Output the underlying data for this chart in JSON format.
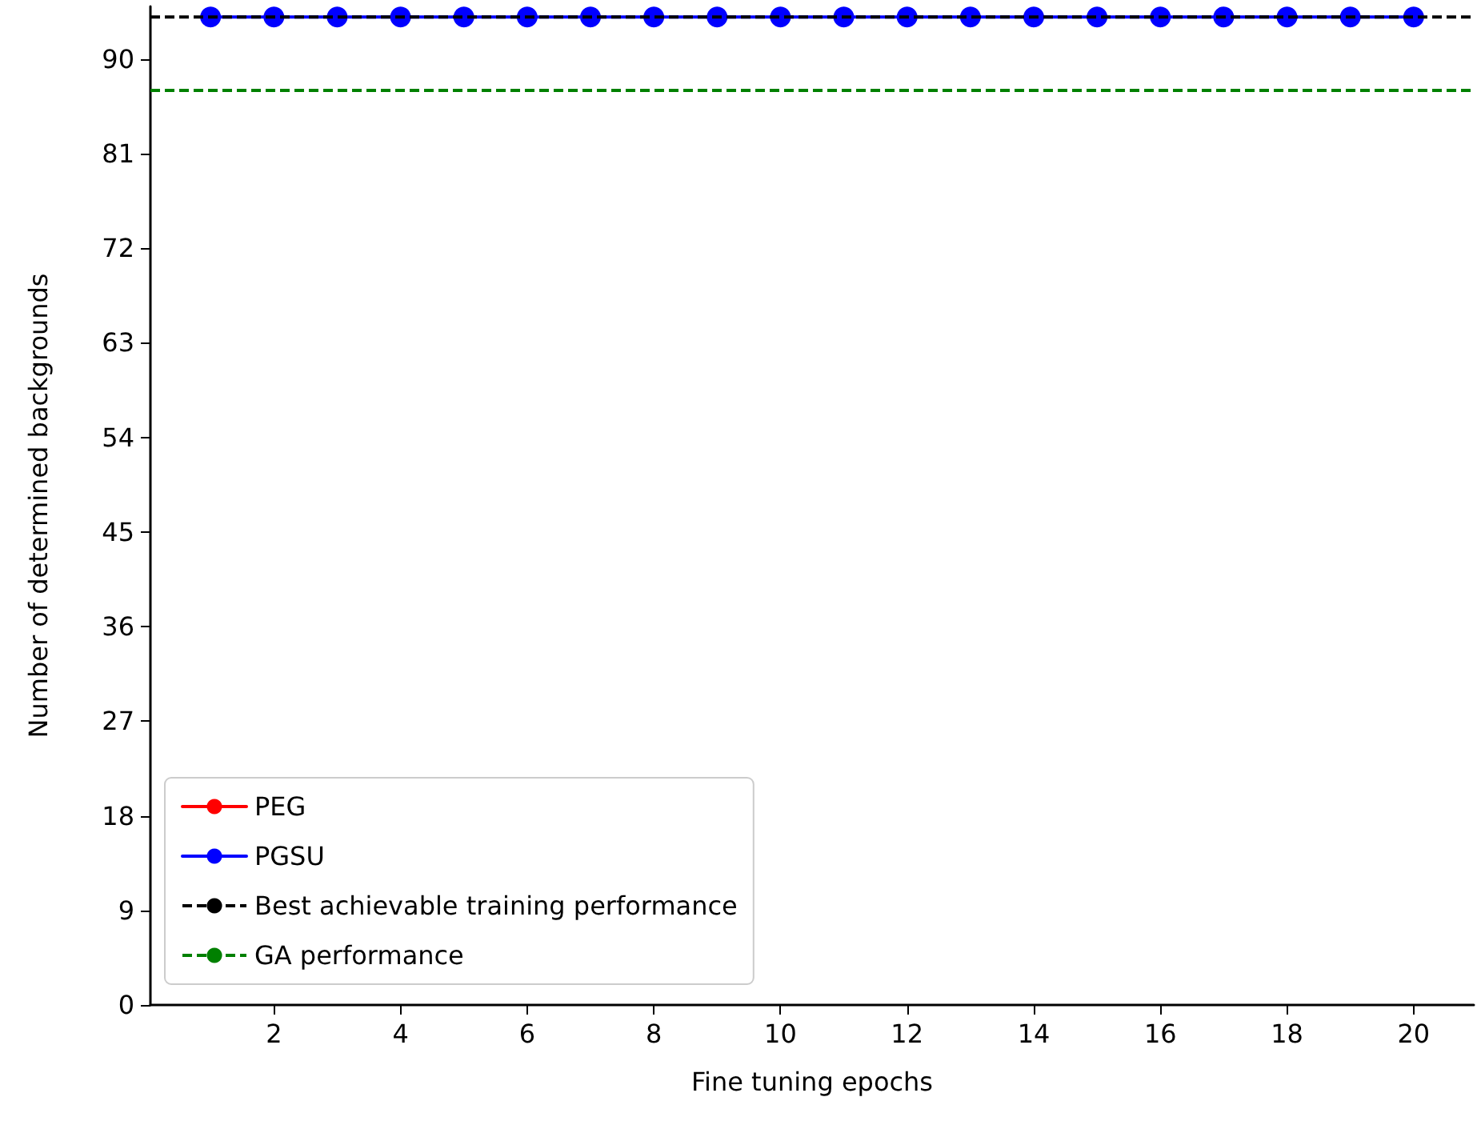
{
  "chart_data": {
    "type": "line",
    "xlabel": "Fine tuning epochs",
    "ylabel": "Number of determined backgrounds",
    "x": [
      1,
      2,
      3,
      4,
      5,
      6,
      7,
      8,
      9,
      10,
      11,
      12,
      13,
      14,
      15,
      16,
      17,
      18,
      19,
      20
    ],
    "series": [
      {
        "name": "PEG",
        "color": "#ff0000",
        "values": [
          null,
          null,
          null,
          null,
          null,
          null,
          null,
          null,
          null,
          null,
          null,
          null,
          null,
          null,
          null,
          null,
          null,
          null,
          null,
          null
        ]
      },
      {
        "name": "PGSU",
        "color": "#0000ff",
        "values": [
          94,
          94,
          94,
          94,
          94,
          94,
          94,
          94,
          94,
          94,
          94,
          94,
          94,
          94,
          94,
          94,
          94,
          94,
          94,
          94
        ]
      }
    ],
    "ref_lines": [
      {
        "axis": "y",
        "value": 94,
        "label": "Best achievable training performance",
        "color": "#000000",
        "line_style": "dashed"
      },
      {
        "axis": "y",
        "value": 87,
        "label": "GA performance",
        "color": "#008000",
        "line_style": "dashed"
      }
    ],
    "xlim": [
      0.05,
      20.95
    ],
    "xticks": [
      2,
      4,
      6,
      8,
      10,
      12,
      14,
      16,
      18,
      20
    ],
    "ylim": [
      0,
      95
    ],
    "yticks": [
      0,
      9,
      18,
      27,
      36,
      45,
      54,
      63,
      72,
      81,
      90
    ],
    "marker": "circle",
    "line_style": "solid",
    "legend": "bottom left",
    "grid": false
  }
}
